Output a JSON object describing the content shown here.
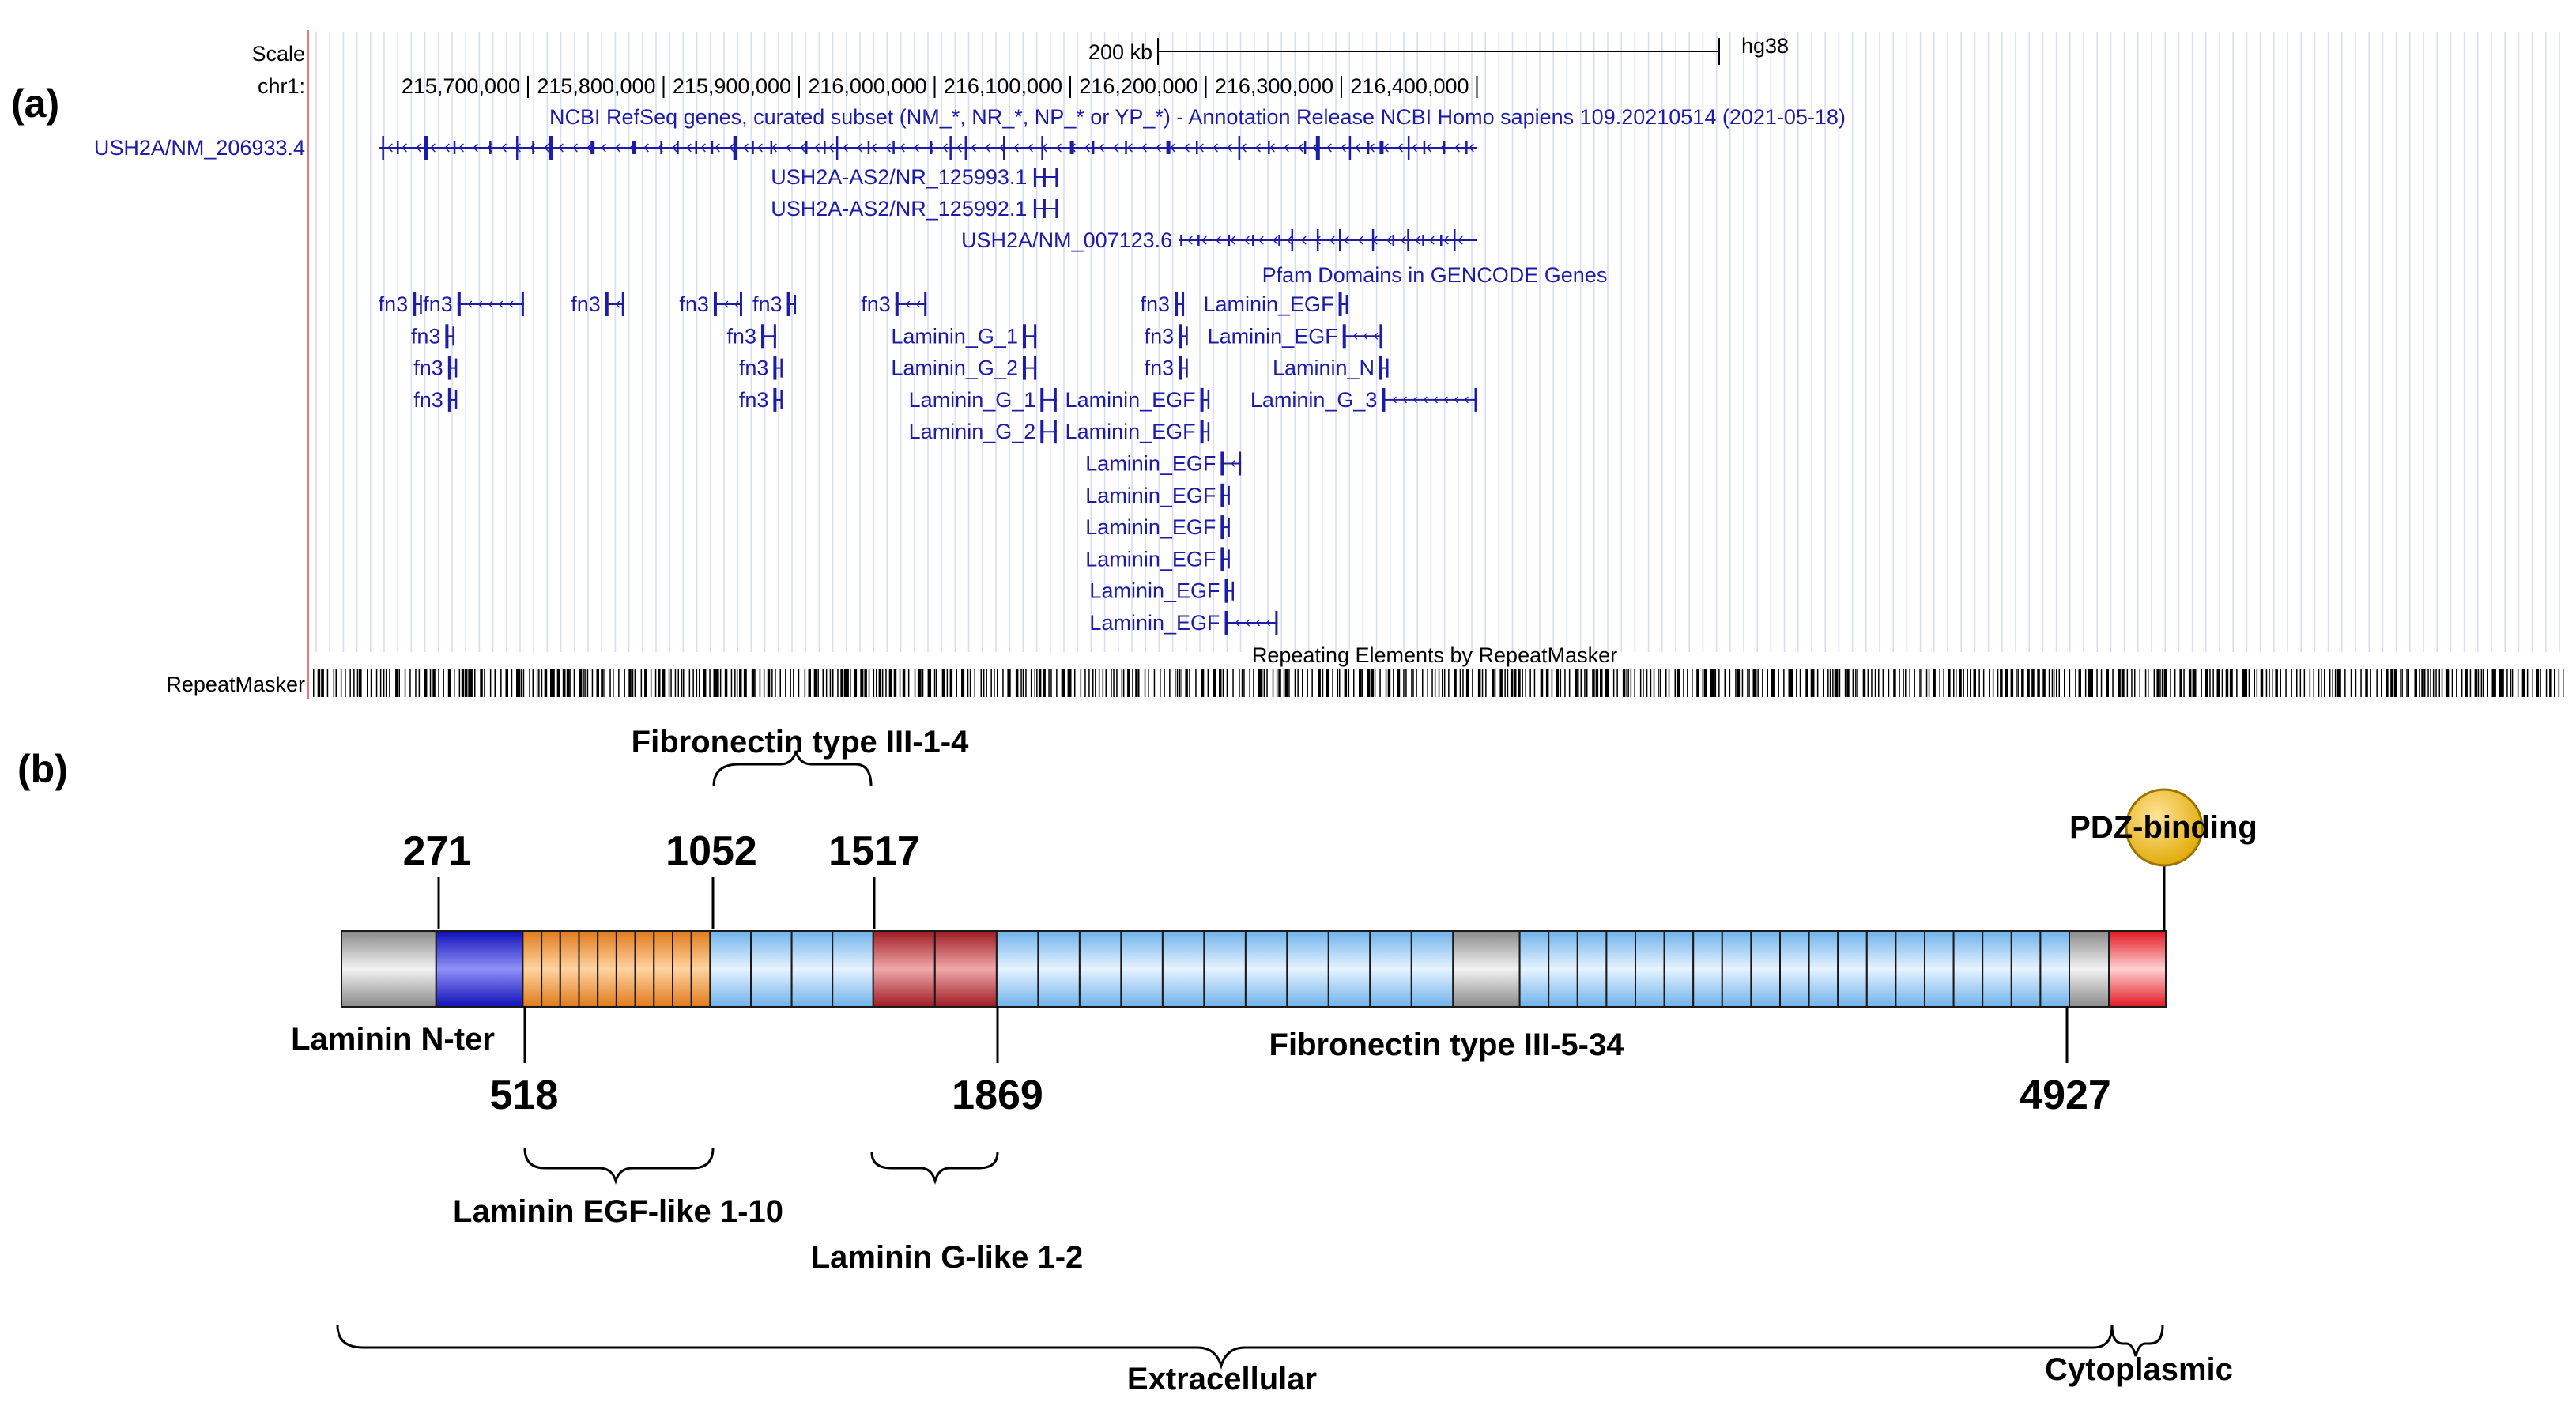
{
  "panel_a": {
    "label": "(a)",
    "scale_label": "Scale",
    "scale_value": "200 kb",
    "assembly": "hg38",
    "chrom_label": "chr1:",
    "ticks": [
      {
        "label": "215,700,000",
        "pos": 215700000
      },
      {
        "label": "215,800,000",
        "pos": 215800000
      },
      {
        "label": "215,900,000",
        "pos": 215900000
      },
      {
        "label": "216,000,000",
        "pos": 216000000
      },
      {
        "label": "216,100,000",
        "pos": 216100000
      },
      {
        "label": "216,200,000",
        "pos": 216200000
      },
      {
        "label": "216,300,000",
        "pos": 216300000
      },
      {
        "label": "216,400,000",
        "pos": 216400000
      }
    ],
    "refseq_title": "NCBI RefSeq genes, curated subset (NM_*, NR_*, NP_* or YP_*) - Annotation Release NCBI Homo sapiens 109.20210514 (2021-05-18)",
    "transcripts": [
      {
        "name": "USH2A/NM_206933.4",
        "start": 215590000,
        "end": 216400000
      },
      {
        "name": "USH2A-AS2/NR_125993.1",
        "start": 216074000,
        "end": 216090000
      },
      {
        "name": "USH2A-AS2/NR_125992.1",
        "start": 216074000,
        "end": 216090000
      },
      {
        "name": "USH2A/NM_007123.6",
        "start": 216180000,
        "end": 216400000
      }
    ],
    "pfam_title": "Pfam Domains in GENCODE Genes",
    "pfam_domains": [
      {
        "label": "fn3",
        "start": 215615000,
        "end": 215618000,
        "row": 0
      },
      {
        "label": "fn3",
        "start": 215648000,
        "end": 215697000,
        "row": 0
      },
      {
        "label": "fn3",
        "start": 215757000,
        "end": 215771000,
        "row": 0
      },
      {
        "label": "fn3",
        "start": 215837000,
        "end": 215858000,
        "row": 0
      },
      {
        "label": "fn3",
        "start": 215891000,
        "end": 215894000,
        "row": 0
      },
      {
        "label": "fn3",
        "start": 215971000,
        "end": 215994000,
        "row": 0
      },
      {
        "label": "fn3",
        "start": 216177000,
        "end": 216184000,
        "row": 0
      },
      {
        "label": "Laminin_EGF",
        "start": 216298000,
        "end": 216301000,
        "row": 0
      },
      {
        "label": "fn3",
        "start": 215639000,
        "end": 215643000,
        "row": 1
      },
      {
        "label": "fn3",
        "start": 215872000,
        "end": 215883000,
        "row": 1
      },
      {
        "label": "Laminin_G_1",
        "start": 216065000,
        "end": 216075000,
        "row": 1
      },
      {
        "label": "fn3",
        "start": 216180000,
        "end": 216182000,
        "row": 1
      },
      {
        "label": "Laminin_EGF",
        "start": 216301000,
        "end": 216330000,
        "row": 1
      },
      {
        "label": "fn3",
        "start": 215641000,
        "end": 215643000,
        "row": 2
      },
      {
        "label": "fn3",
        "start": 215881000,
        "end": 215883000,
        "row": 2
      },
      {
        "label": "Laminin_G_2",
        "start": 216065000,
        "end": 216075000,
        "row": 2
      },
      {
        "label": "fn3",
        "start": 216180000,
        "end": 216182000,
        "row": 2
      },
      {
        "label": "Laminin_N",
        "start": 216328000,
        "end": 216331000,
        "row": 2
      },
      {
        "label": "fn3",
        "start": 215641000,
        "end": 215643000,
        "row": 3
      },
      {
        "label": "fn3",
        "start": 215881000,
        "end": 215883000,
        "row": 3
      },
      {
        "label": "Laminin_G_1",
        "start": 216078000,
        "end": 216090000,
        "row": 3
      },
      {
        "label": "Laminin_EGF",
        "start": 216196000,
        "end": 216198000,
        "row": 3
      },
      {
        "label": "Laminin_G_3",
        "start": 216330000,
        "end": 216400000,
        "row": 3
      },
      {
        "label": "Laminin_G_2",
        "start": 216078000,
        "end": 216090000,
        "row": 4
      },
      {
        "label": "Laminin_EGF",
        "start": 216196000,
        "end": 216198000,
        "row": 4
      },
      {
        "label": "Laminin_EGF",
        "start": 216211000,
        "end": 216226000,
        "row": 5
      },
      {
        "label": "Laminin_EGF",
        "start": 216211000,
        "end": 216213000,
        "row": 6
      },
      {
        "label": "Laminin_EGF",
        "start": 216211000,
        "end": 216213000,
        "row": 7
      },
      {
        "label": "Laminin_EGF",
        "start": 216211000,
        "end": 216213000,
        "row": 8
      },
      {
        "label": "Laminin_EGF",
        "start": 216214000,
        "end": 216216000,
        "row": 9
      },
      {
        "label": "Laminin_EGF",
        "start": 216214000,
        "end": 216253000,
        "row": 10
      }
    ],
    "repeat_title": "Repeating Elements by RepeatMasker",
    "repeat_label": "RepeatMasker"
  },
  "panel_b": {
    "label": "(b)",
    "protein_length": 5202,
    "positions_above": [
      "271",
      "1052",
      "1517"
    ],
    "positions_below": [
      "518",
      "1869",
      "4927"
    ],
    "labels": {
      "fn_1_4": "Fibronectin type III-1-4",
      "pdz": "PDZ-binding",
      "laminin_nter": "Laminin N-ter",
      "fn_5_34": "Fibronectin type III-5-34",
      "laminin_egf": "Laminin EGF-like 1-10",
      "laminin_g": "Laminin G-like 1-2",
      "extracellular": "Extracellular",
      "cytoplasmic": "Cytoplasmic"
    },
    "domains": [
      {
        "name": "signal-region",
        "start": 1,
        "end": 271,
        "color": "#bdbdbd",
        "segments": 1
      },
      {
        "name": "laminin-n-ter",
        "start": 271,
        "end": 518,
        "color": "#2f2fe0",
        "segments": 1
      },
      {
        "name": "laminin-egf-like",
        "start": 518,
        "end": 1052,
        "color": "#f29a3a",
        "segments": 10
      },
      {
        "name": "fibronectin-1-4",
        "start": 1052,
        "end": 1517,
        "color": "#a9d4f5",
        "segments": 4
      },
      {
        "name": "laminin-g-like",
        "start": 1517,
        "end": 1869,
        "color": "#c9363c",
        "segments": 2
      },
      {
        "name": "fibronectin-5-34-a",
        "start": 1869,
        "end": 3170,
        "color": "#a9d4f5",
        "segments": 11
      },
      {
        "name": "gray-spacer",
        "start": 3170,
        "end": 3360,
        "color": "#bdbdbd",
        "segments": 1
      },
      {
        "name": "fibronectin-5-34-b",
        "start": 3360,
        "end": 4927,
        "color": "#a9d4f5",
        "segments": 19
      },
      {
        "name": "transmembrane",
        "start": 4927,
        "end": 5040,
        "color": "#bdbdbd",
        "segments": 1
      },
      {
        "name": "cytoplasmic-tail",
        "start": 5040,
        "end": 5202,
        "color": "#e2343a",
        "segments": 1
      }
    ],
    "colors": {
      "pdz_fill": "#f2c230",
      "genome_blue": "#1c1ca8"
    }
  }
}
